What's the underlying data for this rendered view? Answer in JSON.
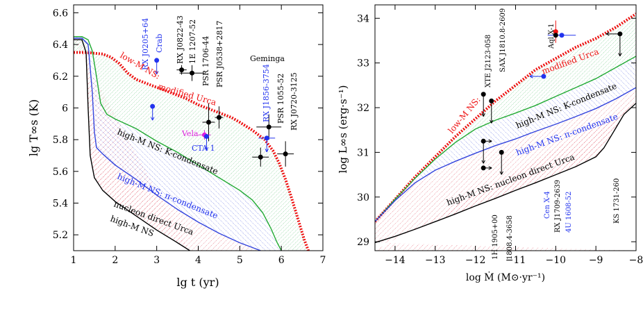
{
  "chart_data": [
    {
      "type": "line",
      "xlabel": "lg t (yr)",
      "ylabel": "lg T∞s (K)",
      "xlim": [
        1,
        7
      ],
      "ylim": [
        5.1,
        6.65
      ],
      "xticks": [
        "1",
        "2",
        "3",
        "4",
        "5",
        "6",
        "7"
      ],
      "yticks": [
        "5.2",
        "5.4",
        "5.6",
        "5.8",
        "6",
        "6.2",
        "6.4",
        "6.6"
      ],
      "series": [
        {
          "name": "low-M NS: modified Urca",
          "color": "#ee1111",
          "style": "dotted-thick",
          "x": [
            1.0,
            1.3,
            1.5,
            1.7,
            1.9,
            2.1,
            2.3,
            2.5,
            2.7,
            2.9,
            3.1,
            3.3,
            3.5,
            3.7,
            4.0,
            4.3,
            4.6,
            4.8,
            5.0,
            5.3,
            5.6,
            5.8,
            5.95,
            6.1,
            6.25,
            6.4,
            6.55,
            6.65
          ],
          "y": [
            6.35,
            6.35,
            6.345,
            6.34,
            6.32,
            6.28,
            6.22,
            6.18,
            6.16,
            6.14,
            6.12,
            6.1,
            6.08,
            6.06,
            6.02,
            5.99,
            5.96,
            5.94,
            5.91,
            5.86,
            5.8,
            5.73,
            5.65,
            5.55,
            5.43,
            5.3,
            5.17,
            5.1
          ]
        },
        {
          "name": "high-M NS: K-condensate",
          "color": "#22aa33",
          "style": "solid",
          "x": [
            1.0,
            1.2,
            1.35,
            1.45,
            1.55,
            1.65,
            1.8,
            2.0,
            2.5,
            3.0,
            3.5,
            4.0,
            4.5,
            5.0,
            5.3,
            5.55,
            5.75,
            5.9,
            6.0
          ],
          "y": [
            6.45,
            6.45,
            6.43,
            6.36,
            6.2,
            6.03,
            5.96,
            5.93,
            5.87,
            5.79,
            5.72,
            5.64,
            5.56,
            5.48,
            5.42,
            5.34,
            5.24,
            5.15,
            5.1
          ]
        },
        {
          "name": "high-M NS: π-condensate",
          "color": "#3344dd",
          "style": "solid",
          "x": [
            1.0,
            1.2,
            1.35,
            1.45,
            1.5,
            1.55,
            1.7,
            2.0,
            2.5,
            3.0,
            3.5,
            4.0,
            4.5,
            5.0,
            5.3,
            5.5
          ],
          "y": [
            6.44,
            6.44,
            6.4,
            6.1,
            5.85,
            5.75,
            5.71,
            5.64,
            5.55,
            5.45,
            5.36,
            5.28,
            5.21,
            5.15,
            5.12,
            5.1
          ]
        },
        {
          "name": "nucleon direct Urca",
          "color": "#000000",
          "style": "solid",
          "x": [
            1.0,
            1.2,
            1.3,
            1.35,
            1.4,
            1.5,
            1.7,
            2.0,
            2.5,
            3.0,
            3.5,
            3.8
          ],
          "y": [
            6.43,
            6.43,
            6.35,
            6.0,
            5.7,
            5.56,
            5.48,
            5.41,
            5.32,
            5.23,
            5.15,
            5.1
          ]
        }
      ],
      "points": [
        {
          "label": "RX J0822-43",
          "x": 3.6,
          "y": 6.24,
          "xerr": 0.12,
          "yerr": 0.03,
          "color": "#000000"
        },
        {
          "label": "1E 1207-52",
          "x": 3.85,
          "y": 6.22,
          "xerr": 0.3,
          "yerr": 0.05,
          "color": "#000000"
        },
        {
          "label": "PSR 1706-44",
          "x": 4.25,
          "y": 5.91,
          "xerr": 0.15,
          "yerr": 0.12,
          "color": "#000000"
        },
        {
          "label": "PSR J0538+2817",
          "x": 4.5,
          "y": 5.94,
          "xerr": 0.1,
          "yerr": 0.07,
          "color": "#000000"
        },
        {
          "label": "Geminga",
          "x": 5.5,
          "y": 5.69,
          "xerr": 0.2,
          "yerr": 0.06,
          "color": "#000000"
        },
        {
          "label": "PSR 1055-52",
          "x": 5.7,
          "y": 5.88,
          "xerr": 0.3,
          "yerr": 0.08,
          "color": "#000000"
        },
        {
          "label": "RX J0720-3125",
          "x": 6.1,
          "y": 5.71,
          "xerr": 0.2,
          "yerr": 0.08,
          "color": "#000000"
        },
        {
          "label": "RX J1856-3754",
          "x": 5.65,
          "y": 5.81,
          "xerr": 0.2,
          "yerr": 0.0,
          "color": "#2233ee",
          "upper": true
        },
        {
          "label": "Vela",
          "x": 4.15,
          "y": 5.83,
          "xerr": 0.15,
          "yerr": 0.03,
          "color": "#dd22dd"
        },
        {
          "label": "CTA 1",
          "x": 4.2,
          "y": 5.82,
          "xerr": 0.0,
          "yerr": 0.0,
          "color": "#2233ee",
          "upper": true
        },
        {
          "label": "Crab",
          "x": 3.0,
          "y": 6.3,
          "xerr": 0.0,
          "yerr": 0.0,
          "color": "#2233ee",
          "upper": true
        },
        {
          "label": "RX J0205+64",
          "x": 2.9,
          "y": 6.01,
          "xerr": 0.0,
          "yerr": 0.0,
          "color": "#2233ee",
          "upper": true
        }
      ]
    },
    {
      "type": "line",
      "xlabel": "log Ṁ (M⊙·yr⁻¹)",
      "ylabel": "log L∞s (erg·s⁻¹)",
      "xlim": [
        -14.5,
        -8
      ],
      "ylim": [
        28.8,
        34.3
      ],
      "xticks": [
        "−14",
        "−13",
        "−12",
        "−11",
        "−10",
        "−9",
        "−8"
      ],
      "yticks": [
        "29",
        "30",
        "31",
        "32",
        "33",
        "34"
      ],
      "series": [
        {
          "name": "low-M NS: modified Urca",
          "color": "#ee1111",
          "style": "dotted-thick",
          "x": [
            -14.5,
            -14.0,
            -13.5,
            -13.0,
            -12.5,
            -12.0,
            -11.5,
            -11.0,
            -10.5,
            -10.0,
            -9.5,
            -9.0,
            -8.5,
            -8.0
          ],
          "y": [
            29.45,
            29.95,
            30.45,
            30.9,
            31.35,
            31.75,
            32.15,
            32.5,
            32.85,
            33.1,
            33.35,
            33.55,
            33.8,
            34.1
          ]
        },
        {
          "name": "high-M NS: K-condensate",
          "color": "#22aa33",
          "style": "solid",
          "x": [
            -14.5,
            -14.0,
            -13.5,
            -13.0,
            -12.5,
            -12.0,
            -11.5,
            -11.0,
            -10.5,
            -10.0,
            -9.5,
            -9.0,
            -8.5,
            -8.0
          ],
          "y": [
            29.45,
            29.95,
            30.42,
            30.85,
            31.22,
            31.52,
            31.72,
            31.88,
            32.05,
            32.25,
            32.45,
            32.65,
            32.9,
            33.15
          ]
        },
        {
          "name": "high-M NS: π-condensate",
          "color": "#3344dd",
          "style": "solid",
          "x": [
            -14.5,
            -14.0,
            -13.5,
            -13.0,
            -12.5,
            -12.0,
            -11.5,
            -11.0,
            -10.5,
            -10.0,
            -9.5,
            -9.0,
            -8.5,
            -8.0
          ],
          "y": [
            29.45,
            29.92,
            30.32,
            30.6,
            30.8,
            30.98,
            31.15,
            31.3,
            31.47,
            31.63,
            31.8,
            31.98,
            32.2,
            32.45
          ]
        },
        {
          "name": "nucleon direct Urca",
          "color": "#000000",
          "style": "solid",
          "x": [
            -14.5,
            -14.0,
            -13.5,
            -13.0,
            -12.5,
            -12.0,
            -11.5,
            -11.0,
            -10.5,
            -10.0,
            -9.5,
            -9.0,
            -8.8,
            -8.6,
            -8.3,
            -8.0
          ],
          "y": [
            28.98,
            29.12,
            29.28,
            29.45,
            29.62,
            29.8,
            29.97,
            30.15,
            30.32,
            30.5,
            30.68,
            30.9,
            31.1,
            31.4,
            31.85,
            32.1
          ]
        }
      ],
      "points": [
        {
          "label": "Aql X-1",
          "x": -10.0,
          "y": 33.7,
          "yerr": 0.25,
          "color": "#ee1111"
        },
        {
          "label": "Aql X-1",
          "x": -9.85,
          "y": 33.62,
          "xerr": 0.35,
          "color": "#2233ee"
        },
        {
          "label": "",
          "x": -10.0,
          "y": 33.62,
          "color": "#000000"
        },
        {
          "label": "KS 1731-260",
          "x": -8.4,
          "y": 33.65,
          "color": "#000000",
          "left": true,
          "down": true
        },
        {
          "label": "SAX J1810.8-2609",
          "x": -10.3,
          "y": 32.7,
          "color": "#2233ee",
          "left": true
        },
        {
          "label": "XTE J2123-058",
          "x": -11.8,
          "y": 32.3,
          "color": "#000000",
          "down": true
        },
        {
          "label": "",
          "x": -11.6,
          "y": 32.15,
          "color": "#000000",
          "down": true
        },
        {
          "label": "1H 1905+00",
          "x": -11.8,
          "y": 31.25,
          "color": "#000000",
          "down": true,
          "right": true
        },
        {
          "label": "1808.4-3658",
          "x": -11.8,
          "y": 30.65,
          "color": "#000000",
          "right": true
        },
        {
          "label": "",
          "x": -11.35,
          "y": 31.0,
          "color": "#000000",
          "down": true
        }
      ]
    }
  ],
  "left_labels": {
    "sources": [
      "RX J0205+64",
      "Crab",
      "RX J0822-43",
      "1E 1207-52",
      "PSR 1706-44",
      "PSR J0538+2817",
      "Geminga",
      "RX J1856-3754",
      "PSR 1055-52",
      "RX J0720-3125",
      "Vela",
      "CTA 1"
    ],
    "curves": [
      "low-M NS:",
      "modified Urca",
      "high-M NS: K-condensate",
      "high-M NS: π-condensate",
      "nucleon direct Urca",
      "high-M NS"
    ]
  },
  "right_labels": {
    "sources": [
      "Aql X-1",
      "XTE J2123-058",
      "SAX J1810.8-2609",
      "1H 1905+00",
      "1808.4-3658",
      "Cen X-4",
      "RX J1709-2639",
      "4U 1608-52",
      "KS 1731-260"
    ],
    "curves": [
      "low-M NS:",
      "modified Urca",
      "high-M NS: K-condensate",
      "high-M NS: π-condensate",
      "high-M NS: nucleon direct Urca"
    ]
  },
  "colors": {
    "red": "#ee1111",
    "green": "#22aa33",
    "blue": "#3344dd",
    "magenta": "#dd22dd",
    "black": "#000000"
  }
}
